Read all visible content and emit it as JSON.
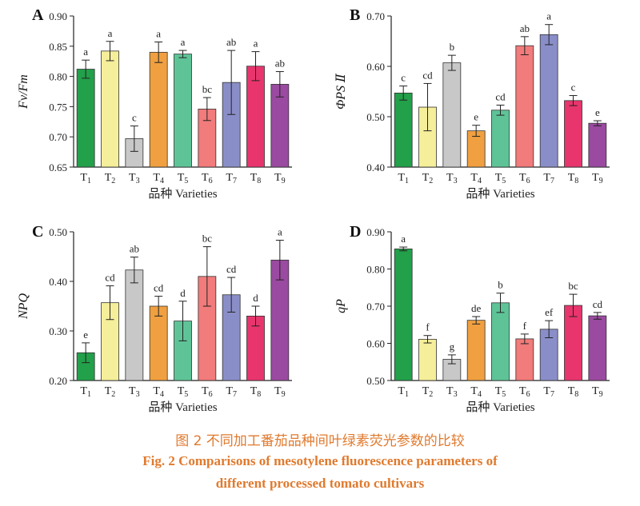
{
  "caption": {
    "zh": "图 2  不同加工番茄品种间叶绿素荧光参数的比较",
    "en_line1": "Fig. 2  Comparisons of mesotylene fluorescence parameters of",
    "en_line2": "different processed tomato cultivars"
  },
  "colors": [
    "#22a04a",
    "#f5ee9a",
    "#c8c8c8",
    "#f0a040",
    "#5ec497",
    "#f27b7b",
    "#8a8ec8",
    "#e8356e",
    "#9a4aa0"
  ],
  "chart_data": [
    {
      "panel": "A",
      "type": "bar",
      "categories": [
        "T1",
        "T2",
        "T3",
        "T4",
        "T5",
        "T6",
        "T7",
        "T8",
        "T9"
      ],
      "values": [
        0.812,
        0.842,
        0.697,
        0.84,
        0.837,
        0.746,
        0.79,
        0.817,
        0.787
      ],
      "errors": [
        0.015,
        0.016,
        0.021,
        0.017,
        0.006,
        0.019,
        0.053,
        0.024,
        0.021
      ],
      "significance": [
        "a",
        "a",
        "c",
        "a",
        "a",
        "bc",
        "ab",
        "a",
        "ab"
      ],
      "ylabel": "Fv/Fm",
      "xlabel": "品种 Varieties",
      "ylim": [
        0.65,
        0.9
      ],
      "yticks": [
        "0.65",
        "0.70",
        "0.75",
        "0.80",
        "0.85",
        "0.90"
      ]
    },
    {
      "panel": "B",
      "type": "bar",
      "categories": [
        "T1",
        "T2",
        "T3",
        "T4",
        "T5",
        "T6",
        "T7",
        "T8",
        "T9"
      ],
      "values": [
        0.547,
        0.519,
        0.607,
        0.472,
        0.513,
        0.641,
        0.663,
        0.532,
        0.487
      ],
      "errors": [
        0.014,
        0.047,
        0.015,
        0.011,
        0.01,
        0.018,
        0.02,
        0.01,
        0.005
      ],
      "significance": [
        "c",
        "cd",
        "b",
        "e",
        "cd",
        "ab",
        "a",
        "c",
        "e"
      ],
      "ylabel": "ΦPS Ⅱ",
      "xlabel": "品种 Varieties",
      "ylim": [
        0.4,
        0.7
      ],
      "yticks": [
        "0.40",
        "0.50",
        "0.60",
        "0.70"
      ]
    },
    {
      "panel": "C",
      "type": "bar",
      "categories": [
        "T1",
        "T2",
        "T3",
        "T4",
        "T5",
        "T6",
        "T7",
        "T8",
        "T9"
      ],
      "values": [
        0.256,
        0.357,
        0.423,
        0.35,
        0.32,
        0.41,
        0.373,
        0.33,
        0.443
      ],
      "errors": [
        0.02,
        0.034,
        0.026,
        0.02,
        0.04,
        0.06,
        0.035,
        0.02,
        0.04
      ],
      "significance": [
        "e",
        "cd",
        "ab",
        "cd",
        "d",
        "bc",
        "cd",
        "d",
        "a"
      ],
      "ylabel": "NPQ",
      "xlabel": "品种 Varieties",
      "ylim": [
        0.2,
        0.5
      ],
      "yticks": [
        "0.20",
        "0.30",
        "0.40",
        "0.50"
      ]
    },
    {
      "panel": "D",
      "type": "bar",
      "categories": [
        "T1",
        "T2",
        "T3",
        "T4",
        "T5",
        "T6",
        "T7",
        "T8",
        "T9"
      ],
      "values": [
        0.854,
        0.611,
        0.557,
        0.662,
        0.709,
        0.612,
        0.638,
        0.702,
        0.674
      ],
      "errors": [
        0.005,
        0.01,
        0.012,
        0.01,
        0.026,
        0.013,
        0.023,
        0.03,
        0.009
      ],
      "significance": [
        "a",
        "f",
        "g",
        "de",
        "b",
        "f",
        "ef",
        "bc",
        "cd"
      ],
      "ylabel": "qP",
      "xlabel": "品种 Varieties",
      "ylim": [
        0.5,
        0.9
      ],
      "yticks": [
        "0.50",
        "0.60",
        "0.70",
        "0.80",
        "0.90"
      ]
    }
  ]
}
